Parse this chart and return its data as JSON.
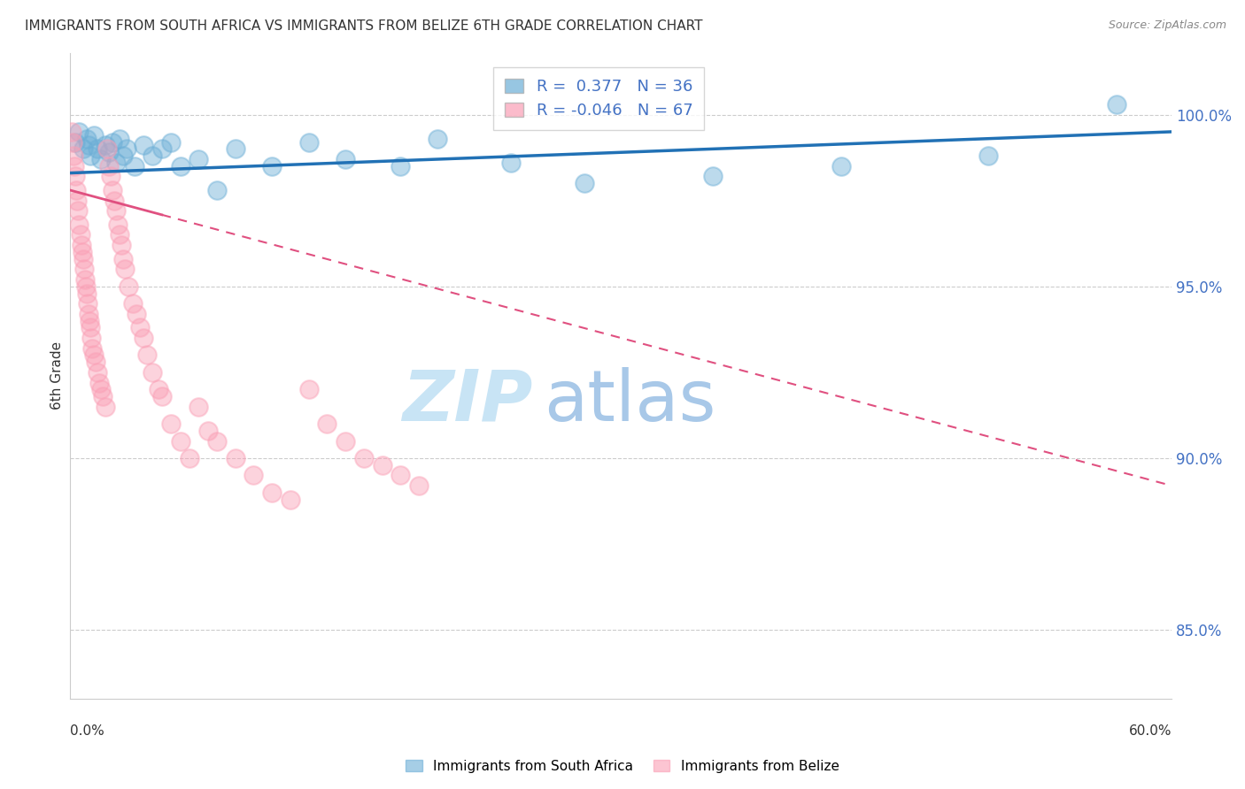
{
  "title": "IMMIGRANTS FROM SOUTH AFRICA VS IMMIGRANTS FROM BELIZE 6TH GRADE CORRELATION CHART",
  "source": "Source: ZipAtlas.com",
  "xlabel_bottom_left": "0.0%",
  "xlabel_bottom_right": "60.0%",
  "ylabel": "6th Grade",
  "y_ticks": [
    85.0,
    90.0,
    95.0,
    100.0
  ],
  "y_tick_labels": [
    "85.0%",
    "90.0%",
    "95.0%",
    "100.0%"
  ],
  "xlim": [
    0.0,
    60.0
  ],
  "ylim": [
    83.0,
    101.8
  ],
  "legend_r_blue": "0.377",
  "legend_n_blue": "36",
  "legend_r_pink": "-0.046",
  "legend_n_pink": "67",
  "legend_label_blue": "Immigrants from South Africa",
  "legend_label_pink": "Immigrants from Belize",
  "blue_color": "#6baed6",
  "pink_color": "#fa9fb5",
  "blue_line_color": "#2171b5",
  "pink_line_color": "#e05080",
  "watermark_zip": "ZIP",
  "watermark_atlas": "atlas",
  "watermark_color": "#cde8f7",
  "background_color": "#ffffff",
  "blue_scatter_x": [
    0.3,
    0.5,
    0.7,
    0.9,
    1.0,
    1.1,
    1.3,
    1.5,
    1.7,
    1.9,
    2.1,
    2.3,
    2.5,
    2.7,
    2.9,
    3.1,
    3.5,
    4.0,
    4.5,
    5.0,
    5.5,
    6.0,
    7.0,
    8.0,
    9.0,
    11.0,
    13.0,
    15.0,
    18.0,
    20.0,
    24.0,
    28.0,
    35.0,
    42.0,
    50.0,
    57.0
  ],
  "blue_scatter_y": [
    99.2,
    99.5,
    99.0,
    99.3,
    99.1,
    98.8,
    99.4,
    99.0,
    98.7,
    99.1,
    98.9,
    99.2,
    98.6,
    99.3,
    98.8,
    99.0,
    98.5,
    99.1,
    98.8,
    99.0,
    99.2,
    98.5,
    98.7,
    97.8,
    99.0,
    98.5,
    99.2,
    98.7,
    98.5,
    99.3,
    98.6,
    98.0,
    98.2,
    98.5,
    98.8,
    100.3
  ],
  "pink_scatter_x": [
    0.1,
    0.15,
    0.2,
    0.25,
    0.3,
    0.35,
    0.4,
    0.45,
    0.5,
    0.55,
    0.6,
    0.65,
    0.7,
    0.75,
    0.8,
    0.85,
    0.9,
    0.95,
    1.0,
    1.05,
    1.1,
    1.15,
    1.2,
    1.3,
    1.4,
    1.5,
    1.6,
    1.7,
    1.8,
    1.9,
    2.0,
    2.1,
    2.2,
    2.3,
    2.4,
    2.5,
    2.6,
    2.7,
    2.8,
    2.9,
    3.0,
    3.2,
    3.4,
    3.6,
    3.8,
    4.0,
    4.2,
    4.5,
    4.8,
    5.0,
    5.5,
    6.0,
    6.5,
    7.0,
    7.5,
    8.0,
    9.0,
    10.0,
    11.0,
    12.0,
    13.0,
    14.0,
    15.0,
    16.0,
    17.0,
    18.0,
    19.0
  ],
  "pink_scatter_y": [
    99.5,
    99.2,
    98.8,
    98.5,
    98.2,
    97.8,
    97.5,
    97.2,
    96.8,
    96.5,
    96.2,
    96.0,
    95.8,
    95.5,
    95.2,
    95.0,
    94.8,
    94.5,
    94.2,
    94.0,
    93.8,
    93.5,
    93.2,
    93.0,
    92.8,
    92.5,
    92.2,
    92.0,
    91.8,
    91.5,
    99.0,
    98.5,
    98.2,
    97.8,
    97.5,
    97.2,
    96.8,
    96.5,
    96.2,
    95.8,
    95.5,
    95.0,
    94.5,
    94.2,
    93.8,
    93.5,
    93.0,
    92.5,
    92.0,
    91.8,
    91.0,
    90.5,
    90.0,
    91.5,
    90.8,
    90.5,
    90.0,
    89.5,
    89.0,
    88.8,
    92.0,
    91.0,
    90.5,
    90.0,
    89.8,
    89.5,
    89.2
  ],
  "pink_line_x0": 0.0,
  "pink_line_y0": 97.8,
  "pink_line_x1": 60.0,
  "pink_line_y1": 89.2,
  "pink_solid_x_end": 5.0,
  "blue_line_x0": 0.0,
  "blue_line_y0": 98.3,
  "blue_line_x1": 60.0,
  "blue_line_y1": 99.5
}
